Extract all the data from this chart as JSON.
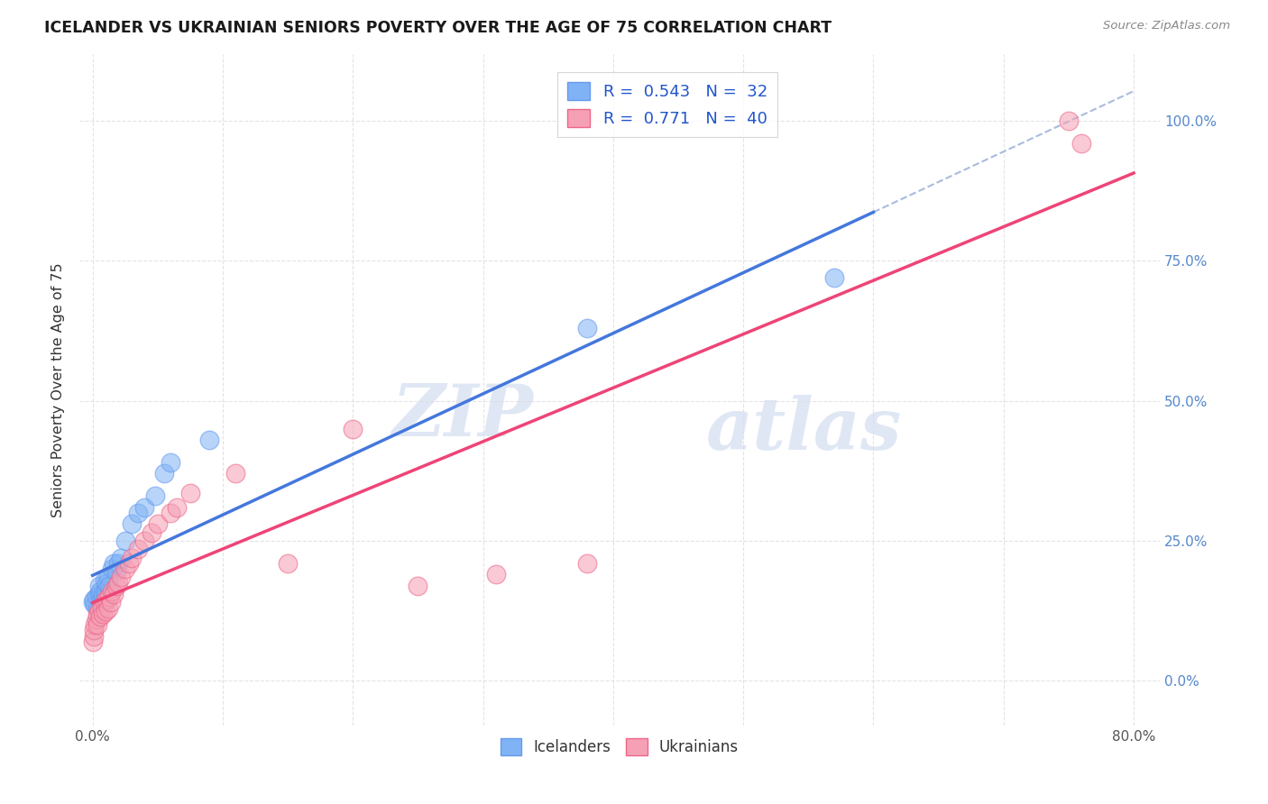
{
  "title": "ICELANDER VS UKRAINIAN SENIORS POVERTY OVER THE AGE OF 75 CORRELATION CHART",
  "source": "Source: ZipAtlas.com",
  "ylabel": "Seniors Poverty Over the Age of 75",
  "background_color": "#ffffff",
  "grid_color": "#dddddd",
  "watermark_zip": "ZIP",
  "watermark_atlas": "atlas",
  "icelanders": {
    "color": "#7fb3f5",
    "edge_color": "#6699ee",
    "alpha": 0.55,
    "R": 0.543,
    "N": 32,
    "label": "Icelanders",
    "x": [
      0.0,
      0.001,
      0.002,
      0.003,
      0.004,
      0.005,
      0.005,
      0.006,
      0.007,
      0.008,
      0.008,
      0.009,
      0.01,
      0.01,
      0.011,
      0.012,
      0.013,
      0.015,
      0.016,
      0.018,
      0.02,
      0.022,
      0.025,
      0.03,
      0.035,
      0.04,
      0.048,
      0.055,
      0.06,
      0.09,
      0.38,
      0.57
    ],
    "y": [
      0.14,
      0.145,
      0.135,
      0.15,
      0.13,
      0.155,
      0.17,
      0.16,
      0.145,
      0.155,
      0.135,
      0.18,
      0.15,
      0.16,
      0.175,
      0.185,
      0.17,
      0.2,
      0.21,
      0.195,
      0.21,
      0.22,
      0.25,
      0.28,
      0.3,
      0.31,
      0.33,
      0.37,
      0.39,
      0.43,
      0.63,
      0.72
    ]
  },
  "ukrainians": {
    "color": "#f5a0b5",
    "edge_color": "#ee6688",
    "alpha": 0.55,
    "R": 0.771,
    "N": 40,
    "label": "Ukrainians",
    "x": [
      0.0,
      0.001,
      0.001,
      0.002,
      0.003,
      0.004,
      0.004,
      0.005,
      0.006,
      0.007,
      0.008,
      0.009,
      0.01,
      0.011,
      0.012,
      0.013,
      0.014,
      0.015,
      0.016,
      0.018,
      0.02,
      0.022,
      0.025,
      0.028,
      0.03,
      0.035,
      0.04,
      0.045,
      0.05,
      0.06,
      0.065,
      0.075,
      0.11,
      0.15,
      0.2,
      0.25,
      0.31,
      0.38,
      0.75,
      0.76
    ],
    "y": [
      0.07,
      0.08,
      0.09,
      0.1,
      0.11,
      0.12,
      0.1,
      0.125,
      0.115,
      0.13,
      0.12,
      0.14,
      0.125,
      0.145,
      0.13,
      0.15,
      0.14,
      0.16,
      0.155,
      0.17,
      0.175,
      0.185,
      0.2,
      0.21,
      0.22,
      0.235,
      0.25,
      0.265,
      0.28,
      0.3,
      0.31,
      0.335,
      0.37,
      0.21,
      0.45,
      0.17,
      0.19,
      0.21,
      1.0,
      0.96
    ]
  },
  "xlim": [
    -0.01,
    0.82
  ],
  "ylim": [
    -0.08,
    1.12
  ],
  "xtick_positions": [
    0.0,
    0.1,
    0.2,
    0.3,
    0.4,
    0.5,
    0.6,
    0.7,
    0.8
  ],
  "xticklabels": [
    "0.0%",
    "",
    "",
    "",
    "",
    "",
    "",
    "",
    "80.0%"
  ],
  "ytick_positions": [
    0.0,
    0.25,
    0.5,
    0.75,
    1.0
  ],
  "yticklabels_right": [
    "0.0%",
    "25.0%",
    "50.0%",
    "75.0%",
    "100.0%"
  ],
  "legend_R_icel": "0.543",
  "legend_N_icel": "32",
  "legend_R_ukr": "0.771",
  "legend_N_ukr": "40"
}
